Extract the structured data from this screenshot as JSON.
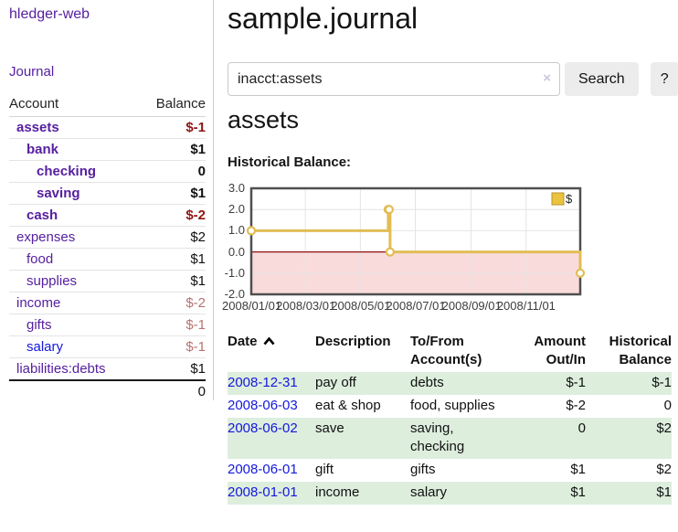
{
  "app_title": "hledger-web",
  "sidebar": {
    "journal_link": "Journal",
    "columns": {
      "account": "Account",
      "balance": "Balance"
    },
    "accounts": [
      {
        "name": "assets",
        "level": 1,
        "bold": true,
        "balance": "$-1",
        "neg": "strong"
      },
      {
        "name": "bank",
        "level": 2,
        "bold": true,
        "balance": "$1",
        "neg": "none"
      },
      {
        "name": "checking",
        "level": 3,
        "bold": true,
        "balance": "0",
        "neg": "none"
      },
      {
        "name": "saving",
        "level": 3,
        "bold": true,
        "balance": "$1",
        "neg": "none"
      },
      {
        "name": "cash",
        "level": 2,
        "bold": true,
        "balance": "$-2",
        "neg": "strong"
      },
      {
        "name": "expenses",
        "level": 1,
        "bold": false,
        "balance": "$2",
        "neg": "none"
      },
      {
        "name": "food",
        "level": 2,
        "bold": false,
        "balance": "$1",
        "neg": "none"
      },
      {
        "name": "supplies",
        "level": 2,
        "bold": false,
        "balance": "$1",
        "neg": "none"
      },
      {
        "name": "income",
        "level": 1,
        "bold": false,
        "balance": "$-2",
        "neg": "light"
      },
      {
        "name": "gifts",
        "level": 2,
        "bold": false,
        "balance": "$-1",
        "neg": "light"
      },
      {
        "name": "salary",
        "level": 2,
        "bold": false,
        "balance": "$-1",
        "neg": "light",
        "link_color": "blue"
      },
      {
        "name": "liabilities:debts",
        "level": 1,
        "bold": false,
        "balance": "$1",
        "neg": "none"
      }
    ],
    "total": "0"
  },
  "main": {
    "page_title": "sample.journal",
    "search": {
      "value": "inacct:assets",
      "clear": "×",
      "search_button": "Search",
      "help_button": "?"
    },
    "account_heading": "assets",
    "chart_title": "Historical Balance:"
  },
  "chart_data": {
    "type": "line",
    "title": "Historical Balance:",
    "series": [
      {
        "name": "$",
        "step": true,
        "points": [
          [
            "2008-01-01",
            1
          ],
          [
            "2008-06-01",
            2
          ],
          [
            "2008-06-02",
            2
          ],
          [
            "2008-06-03",
            0
          ],
          [
            "2008-12-31",
            -1
          ]
        ]
      }
    ],
    "x_range": [
      "2008-01-01",
      "2008-12-31"
    ],
    "ylim": [
      -2,
      3
    ],
    "y_ticks": [
      {
        "v": 3,
        "label": "3.0"
      },
      {
        "v": 2,
        "label": "2.0"
      },
      {
        "v": 1,
        "label": "1.0"
      },
      {
        "v": 0,
        "label": "0.0"
      },
      {
        "v": -1,
        "label": "-1.0"
      },
      {
        "v": -2,
        "label": "-2.0"
      }
    ],
    "x_ticks": [
      {
        "date": "2008-01-01",
        "label": "2008/01/01"
      },
      {
        "date": "2008-03-01",
        "label": "2008/03/01"
      },
      {
        "date": "2008-05-01",
        "label": "2008/05/01"
      },
      {
        "date": "2008-07-01",
        "label": "2008/07/01"
      },
      {
        "date": "2008-09-01",
        "label": "2008/09/01"
      },
      {
        "date": "2008-11-01",
        "label": "2008/11/01"
      }
    ],
    "legend": {
      "label": "$",
      "position": "top-right"
    },
    "grid": true,
    "colors": {
      "line": "#e2bd55",
      "marker_fill": "#ffffff",
      "negative_region": "#fadbdb",
      "zero_line": "#8e1313",
      "grid": "#e4e4e4",
      "border": "#4f4f4f",
      "legend_fill": "#eac33f",
      "legend_border": "#b7952e"
    }
  },
  "register": {
    "headers": {
      "date": "Date",
      "description": "Description",
      "accounts": "To/From Account(s)",
      "amount": "Amount Out/In",
      "balance": "Historical Balance"
    },
    "rows": [
      {
        "date": "2008-12-31",
        "description": "pay off",
        "accounts": "debts",
        "amount": "$-1",
        "amount_neg": true,
        "balance": "$-1",
        "balance_neg": true
      },
      {
        "date": "2008-06-03",
        "description": "eat & shop",
        "accounts": "food, supplies",
        "amount": "$-2",
        "amount_neg": true,
        "balance": "0",
        "balance_neg": false
      },
      {
        "date": "2008-06-02",
        "description": "save",
        "accounts": "saving, checking",
        "amount": "0",
        "amount_neg": false,
        "balance": "$2",
        "balance_neg": false
      },
      {
        "date": "2008-06-01",
        "description": "gift",
        "accounts": "gifts",
        "amount": "$1",
        "amount_neg": false,
        "balance": "$2",
        "balance_neg": false
      },
      {
        "date": "2008-01-01",
        "description": "income",
        "accounts": "salary",
        "amount": "$1",
        "amount_neg": false,
        "balance": "$1",
        "balance_neg": false
      }
    ]
  }
}
